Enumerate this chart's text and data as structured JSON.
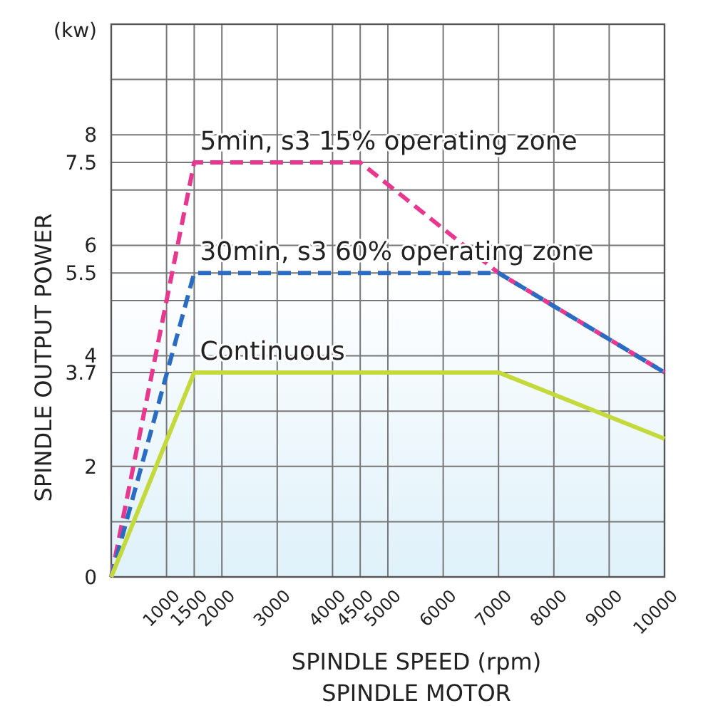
{
  "chart_data": {
    "type": "line",
    "xlabel": "SPINDLE SPEED (rpm)",
    "ylabel": "SPINDLE OUTPUT POWER",
    "annotations": [
      "(kw)",
      "SPINDLE MOTOR"
    ],
    "xlim": [
      0,
      10000
    ],
    "ylim": [
      0,
      10
    ],
    "xticks": [
      {
        "value": 0,
        "label": null
      },
      1000,
      1500,
      2000,
      3000,
      4000,
      4500,
      5000,
      6000,
      7000,
      8000,
      9000,
      10000
    ],
    "yticks": [
      0,
      {
        "value": 1,
        "label": null
      },
      2,
      {
        "value": 3,
        "label": null
      },
      3.7,
      4,
      {
        "value": 5,
        "label": null
      },
      5.5,
      6,
      {
        "value": 7,
        "label": null
      },
      7.5,
      8,
      {
        "value": 9,
        "label": null
      },
      {
        "value": 10,
        "label": null
      }
    ],
    "grid": true,
    "legend": false,
    "marker": "none",
    "series": [
      {
        "name": "5min, s3 15% operating zone",
        "color": "#e8378f",
        "line_style": "dashed",
        "x": [
          0,
          1500,
          4500,
          7000,
          10000
        ],
        "values": [
          0,
          7.5,
          7.5,
          5.5,
          3.7
        ]
      },
      {
        "name": "30min, s3 60% operating zone",
        "color": "#2a6cc2",
        "line_style": "dashed",
        "x": [
          0,
          1500,
          7000,
          10000
        ],
        "values": [
          0,
          5.5,
          5.5,
          3.7
        ]
      },
      {
        "name": "Continuous",
        "color": "#c3d93c",
        "line_style": "solid",
        "x": [
          0,
          1500,
          7000,
          10000
        ],
        "values": [
          0,
          3.7,
          3.7,
          2.5
        ]
      }
    ]
  }
}
